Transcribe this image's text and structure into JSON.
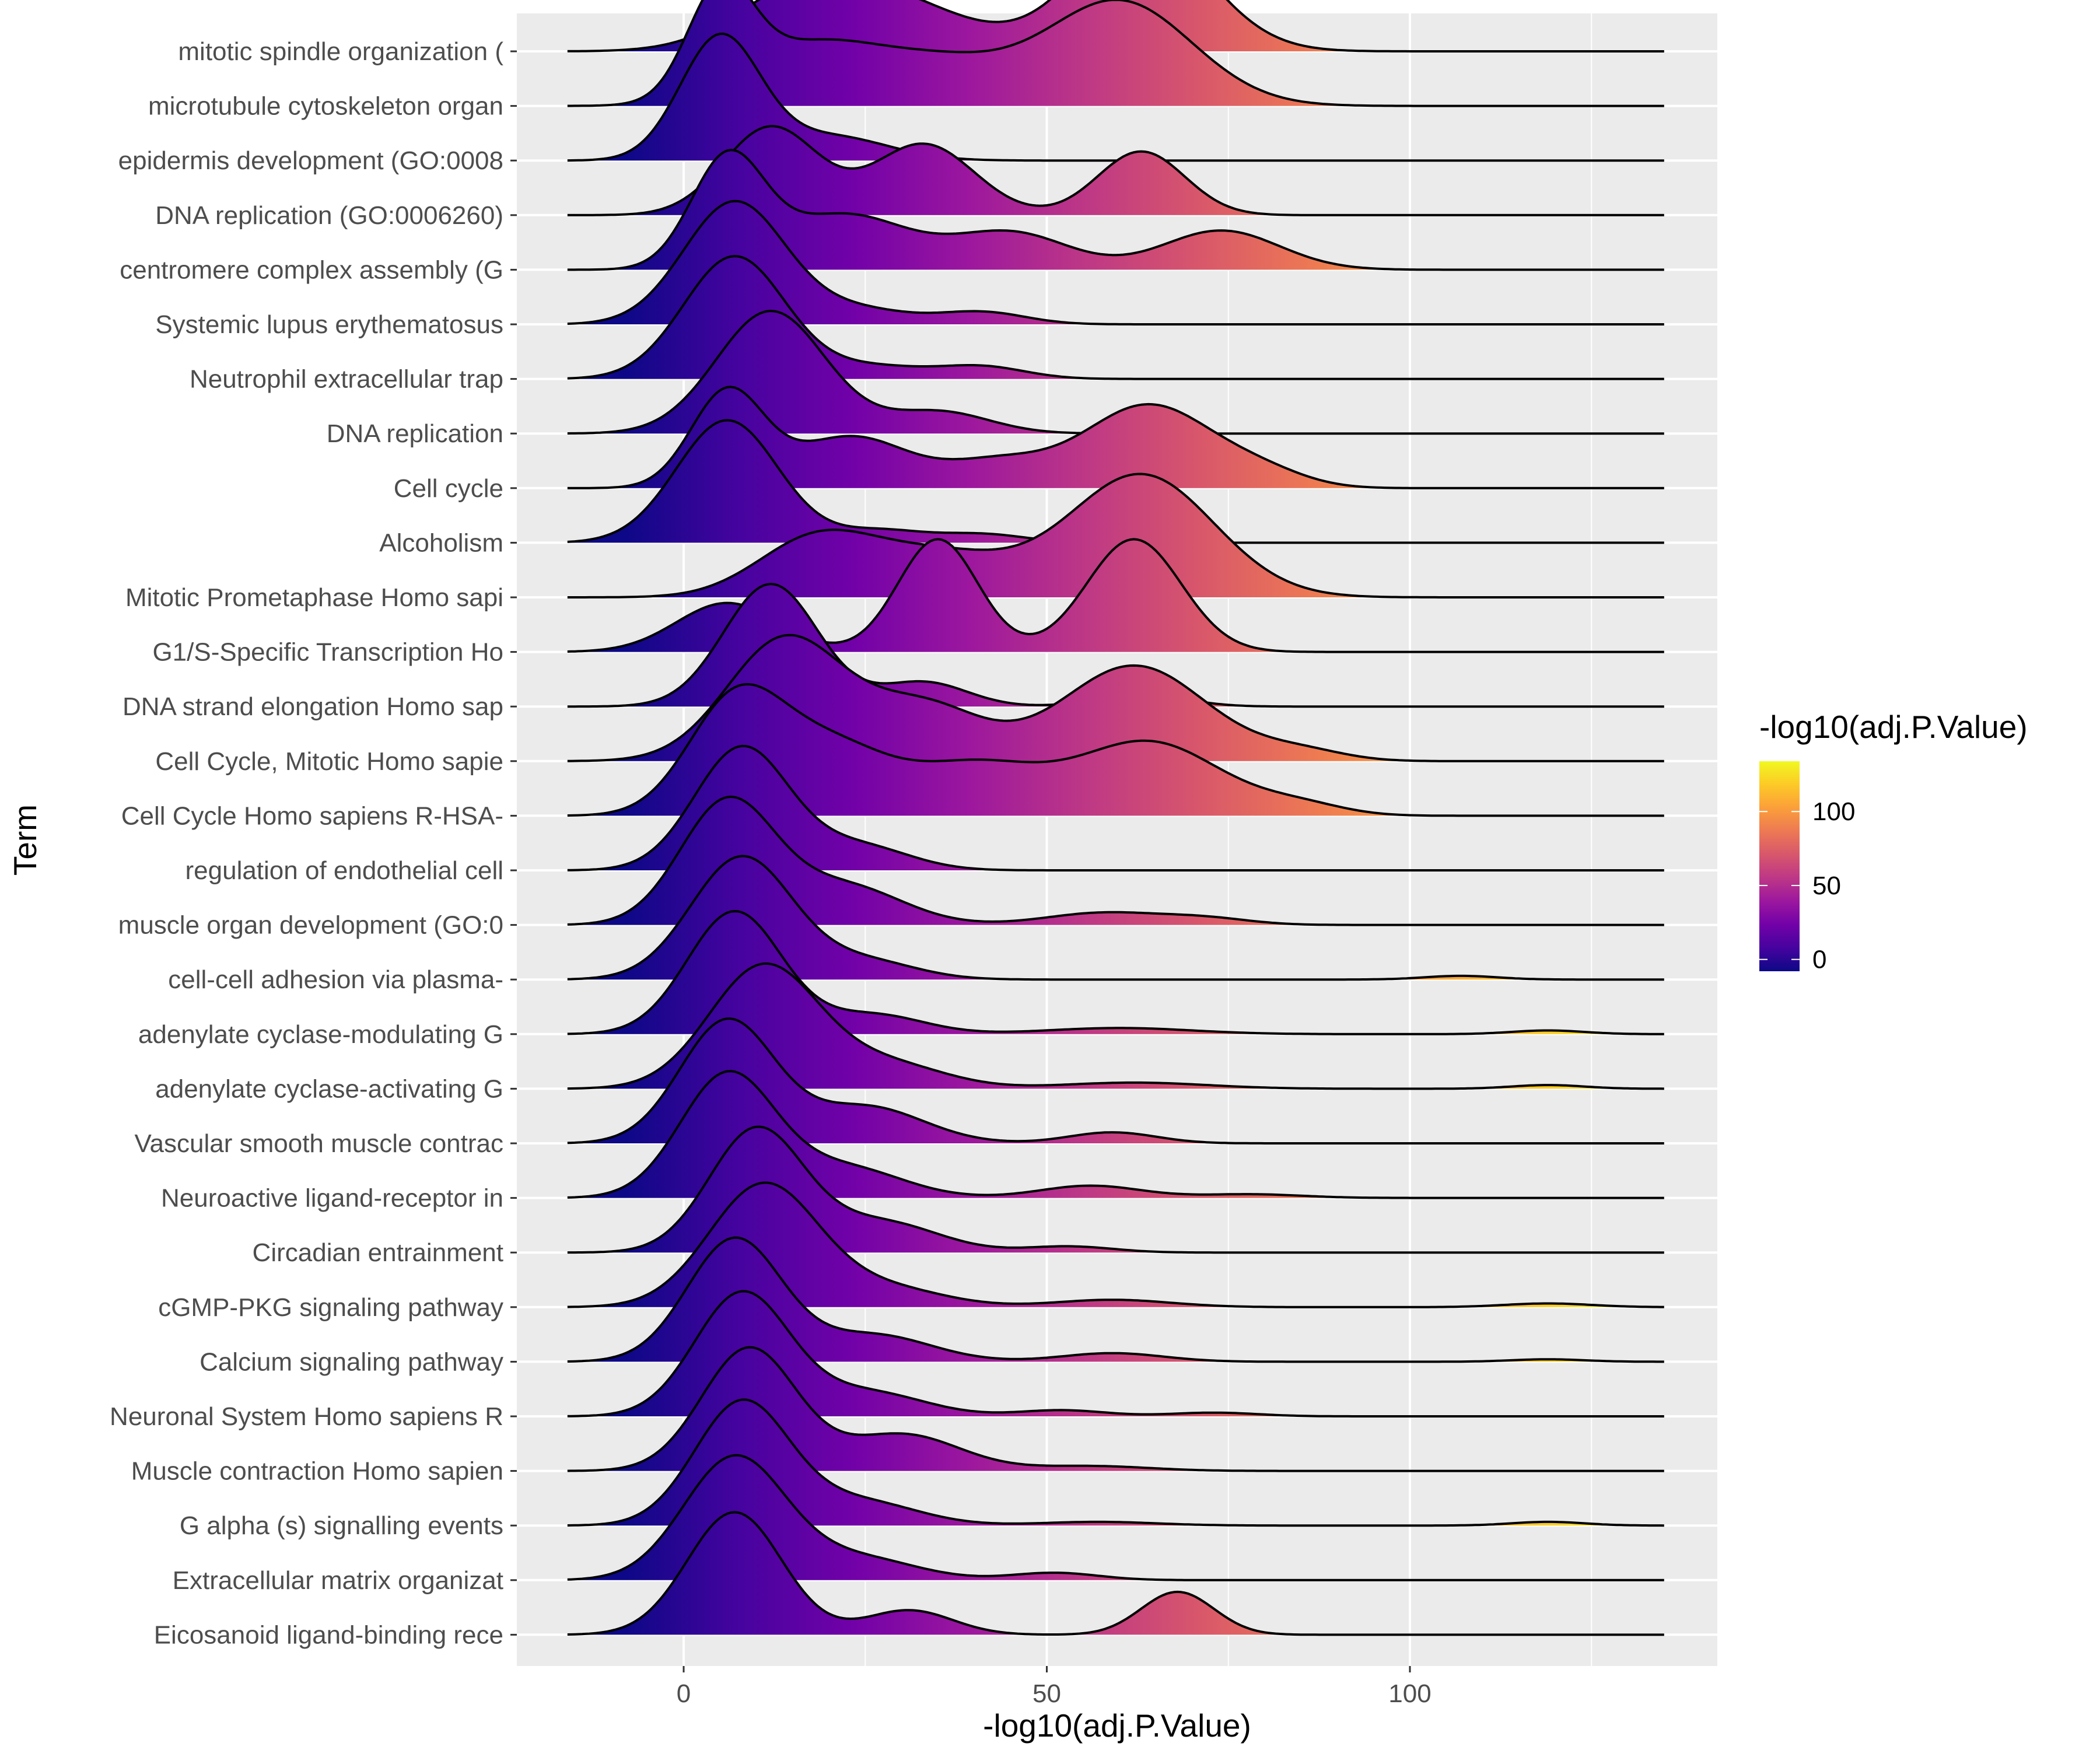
{
  "chart_data": {
    "type": "ridgeline",
    "xlabel": "-log10(adj.P.Value)",
    "ylabel": "Term",
    "xlim": [
      -23,
      142
    ],
    "x_ticks": [
      0,
      50,
      100
    ],
    "x_minor_ticks": [
      -25,
      25,
      75,
      125
    ],
    "grid": true,
    "legend": {
      "title": "-log10(adj.P.Value)",
      "position": "right",
      "type": "colorbar",
      "range": [
        -8,
        134
      ],
      "ticks": [
        0,
        50,
        100
      ]
    },
    "colors": {
      "panel_background": "#ebebeb",
      "gridline": "#ffffff",
      "outline": "#000000",
      "colormap": "plasma",
      "plasma_stops": [
        "#0d0887",
        "#46039f",
        "#7201a8",
        "#9c179e",
        "#bd3786",
        "#d8576b",
        "#ed7953",
        "#fb9f3a",
        "#fdca26",
        "#f0f921"
      ]
    },
    "density_x_range": [
      -16,
      135
    ],
    "terms": [
      {
        "name": "mitotic spindle organization (",
        "peaks": [
          [
            16,
            9,
            0.45
          ],
          [
            30,
            10,
            0.35
          ],
          [
            63,
            9,
            1.0
          ]
        ]
      },
      {
        "name": "microtubule cytoskeleton organ",
        "peaks": [
          [
            5,
            4.5,
            0.85
          ],
          [
            17,
            9,
            0.45
          ],
          [
            35,
            10,
            0.35
          ],
          [
            60,
            10,
            0.85
          ]
        ]
      },
      {
        "name": "epidermis development (GO:0008",
        "peaks": [
          [
            5,
            5.5,
            1.0
          ],
          [
            20,
            8,
            0.2
          ]
        ]
      },
      {
        "name": "DNA replication (GO:0006260)",
        "peaks": [
          [
            12,
            6.5,
            0.72
          ],
          [
            33,
            7,
            0.58
          ],
          [
            63,
            6,
            0.52
          ]
        ]
      },
      {
        "name": "centromere complex assembly (G",
        "peaks": [
          [
            6,
            5,
            0.88
          ],
          [
            22,
            9,
            0.45
          ],
          [
            45,
            8,
            0.3
          ],
          [
            74,
            8,
            0.32
          ]
        ]
      },
      {
        "name": "Systemic lupus erythematosus",
        "peaks": [
          [
            7,
            7,
            1.0
          ],
          [
            24,
            7,
            0.12
          ],
          [
            41,
            6,
            0.1
          ]
        ]
      },
      {
        "name": "Neutrophil extracellular trap",
        "peaks": [
          [
            7,
            7,
            1.0
          ],
          [
            26,
            7,
            0.1
          ],
          [
            41,
            6,
            0.1
          ]
        ]
      },
      {
        "name": "DNA replication",
        "peaks": [
          [
            12,
            7.5,
            1.0
          ],
          [
            35,
            7,
            0.18
          ]
        ]
      },
      {
        "name": "Cell cycle",
        "peaks": [
          [
            6,
            5,
            0.78
          ],
          [
            23,
            8,
            0.42
          ],
          [
            43,
            7,
            0.2
          ],
          [
            64,
            9,
            0.68
          ],
          [
            80,
            6,
            0.1
          ]
        ]
      },
      {
        "name": "Alcoholism",
        "peaks": [
          [
            6,
            7,
            1.0
          ],
          [
            27,
            6,
            0.1
          ],
          [
            41,
            6,
            0.07
          ]
        ]
      },
      {
        "name": "Mitotic Prometaphase Homo sapi",
        "peaks": [
          [
            18,
            8,
            0.45
          ],
          [
            35,
            10,
            0.35
          ],
          [
            63,
            10,
            1.0
          ]
        ]
      },
      {
        "name": "G1/S-Specific Transcription Ho",
        "peaks": [
          [
            6,
            7,
            0.4
          ],
          [
            35,
            5.5,
            0.92
          ],
          [
            62,
            6.5,
            0.92
          ]
        ]
      },
      {
        "name": "DNA strand elongation Homo sap",
        "peaks": [
          [
            12,
            6.5,
            1.0
          ],
          [
            33,
            6,
            0.2
          ],
          [
            63,
            6,
            0.1
          ]
        ]
      },
      {
        "name": "Cell Cycle, Mitotic Homo sapie",
        "peaks": [
          [
            14,
            8,
            1.0
          ],
          [
            33,
            8,
            0.45
          ],
          [
            62,
            10,
            0.78
          ],
          [
            85,
            6,
            0.08
          ]
        ]
      },
      {
        "name": "Cell Cycle Homo sapiens R-HSA-",
        "peaks": [
          [
            7,
            6.5,
            0.9
          ],
          [
            20,
            8,
            0.55
          ],
          [
            40,
            9,
            0.4
          ],
          [
            64,
            10,
            0.6
          ],
          [
            85,
            6,
            0.08
          ]
        ]
      },
      {
        "name": "regulation of endothelial cell",
        "peaks": [
          [
            8,
            6.5,
            1.0
          ],
          [
            24,
            7,
            0.2
          ]
        ]
      },
      {
        "name": "muscle organ development (GO:0",
        "peaks": [
          [
            6,
            6.5,
            1.0
          ],
          [
            22,
            8,
            0.32
          ],
          [
            58,
            8,
            0.1
          ],
          [
            72,
            6,
            0.05
          ]
        ]
      },
      {
        "name": "cell-cell adhesion via plasma-",
        "peaks": [
          [
            8,
            7,
            1.0
          ],
          [
            25,
            7,
            0.15
          ],
          [
            107,
            5,
            0.03
          ]
        ]
      },
      {
        "name": "adenylate cyclase-modulating G",
        "peaks": [
          [
            7,
            6.5,
            1.0
          ],
          [
            26,
            7,
            0.16
          ],
          [
            60,
            10,
            0.05
          ],
          [
            119,
            5,
            0.03
          ]
        ]
      },
      {
        "name": "adenylate cyclase-activating G",
        "peaks": [
          [
            11,
            7.5,
            1.0
          ],
          [
            28,
            8,
            0.2
          ],
          [
            62,
            10,
            0.05
          ],
          [
            119,
            5,
            0.03
          ]
        ]
      },
      {
        "name": "Vascular smooth muscle contrac",
        "peaks": [
          [
            6,
            6.5,
            1.0
          ],
          [
            25,
            8,
            0.3
          ],
          [
            59,
            6,
            0.09
          ]
        ]
      },
      {
        "name": "Neuroactive ligand-receptor in",
        "peaks": [
          [
            6,
            6.5,
            1.0
          ],
          [
            22,
            8,
            0.25
          ],
          [
            56,
            7,
            0.1
          ],
          [
            78,
            7,
            0.03
          ]
        ]
      },
      {
        "name": "Circadian entrainment",
        "peaks": [
          [
            10,
            6.5,
            1.0
          ],
          [
            27,
            8,
            0.25
          ],
          [
            53,
            6,
            0.05
          ]
        ]
      },
      {
        "name": "cGMP-PKG signaling pathway",
        "peaks": [
          [
            11,
            7.5,
            1.0
          ],
          [
            28,
            8,
            0.15
          ],
          [
            59,
            8,
            0.06
          ],
          [
            119,
            6,
            0.03
          ]
        ]
      },
      {
        "name": "Calcium signaling pathway",
        "peaks": [
          [
            7,
            6.5,
            1.0
          ],
          [
            26,
            8,
            0.22
          ],
          [
            59,
            7,
            0.07
          ],
          [
            119,
            5,
            0.02
          ]
        ]
      },
      {
        "name": "Neuronal System Homo sapiens R",
        "peaks": [
          [
            8,
            6.5,
            1.0
          ],
          [
            25,
            8,
            0.2
          ],
          [
            52,
            6,
            0.05
          ],
          [
            73,
            6,
            0.03
          ]
        ]
      },
      {
        "name": "Muscle contraction Homo sapien",
        "peaks": [
          [
            9,
            6.5,
            1.0
          ],
          [
            30,
            8,
            0.3
          ],
          [
            56,
            8,
            0.04
          ]
        ]
      },
      {
        "name": "G alpha (s) signalling events",
        "peaks": [
          [
            8,
            6.5,
            1.0
          ],
          [
            24,
            8,
            0.2
          ],
          [
            57,
            8,
            0.03
          ],
          [
            119,
            5,
            0.03
          ]
        ]
      },
      {
        "name": "Extracellular matrix organizat",
        "peaks": [
          [
            7,
            7,
            1.0
          ],
          [
            24,
            8,
            0.18
          ],
          [
            51,
            6,
            0.06
          ]
        ]
      },
      {
        "name": "Eicosanoid ligand-binding rece",
        "peaks": [
          [
            7,
            6.5,
            1.0
          ],
          [
            31,
            6,
            0.2
          ],
          [
            68,
            5,
            0.35
          ]
        ]
      }
    ]
  }
}
